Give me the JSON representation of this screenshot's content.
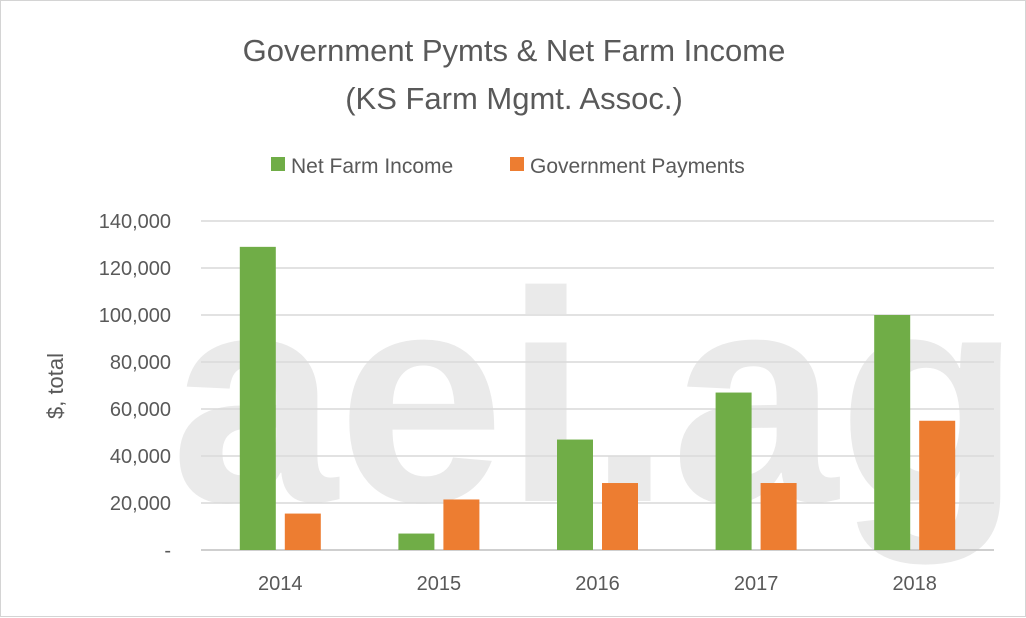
{
  "chart_data": {
    "type": "bar",
    "title": "Government Pymts & Net Farm Income",
    "subtitle": "(KS Farm Mgmt. Assoc.)",
    "xlabel": "",
    "ylabel": "$, total",
    "categories": [
      "2014",
      "2015",
      "2016",
      "2017",
      "2018"
    ],
    "series": [
      {
        "name": "Net Farm Income",
        "color": "#70ad47",
        "values": [
          129000,
          7000,
          47000,
          67000,
          100000
        ]
      },
      {
        "name": "Government Payments",
        "color": "#ed7d31",
        "values": [
          15500,
          21500,
          28500,
          28500,
          55000
        ]
      }
    ],
    "ylim": [
      0,
      140000
    ],
    "yticks": [
      "-",
      "20,000",
      "40,000",
      "60,000",
      "80,000",
      "100,000",
      "120,000",
      "140,000"
    ],
    "grid": true,
    "legend_position": "top-center",
    "watermark": "aei.ag"
  }
}
